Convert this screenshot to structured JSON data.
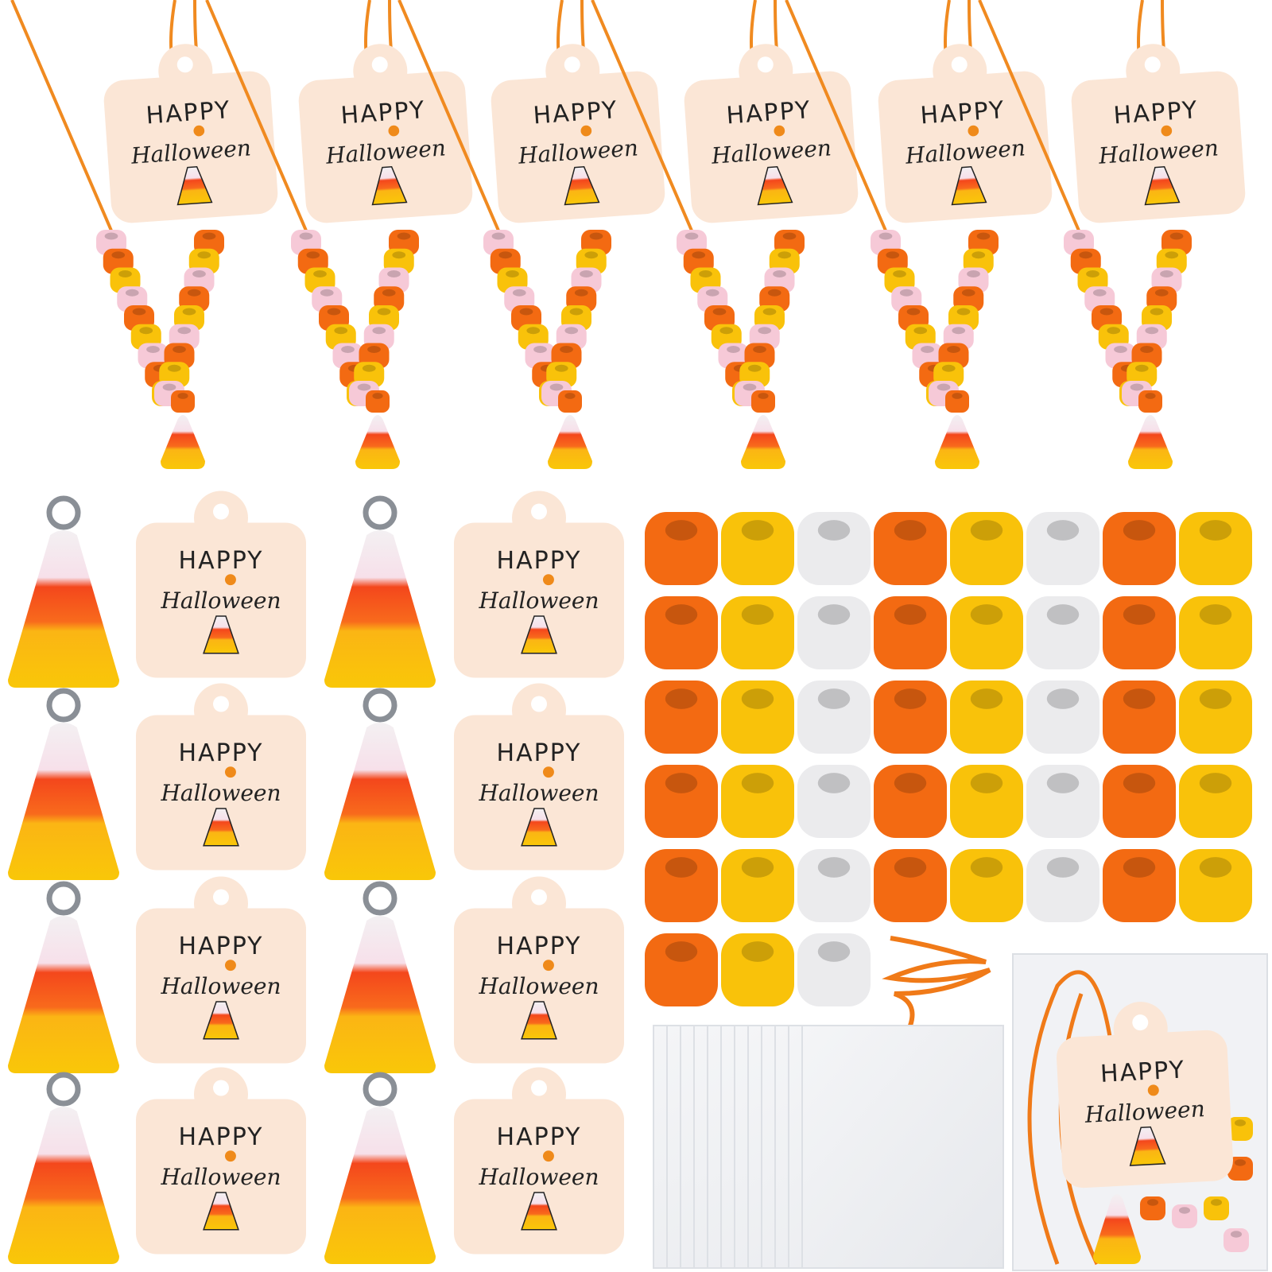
{
  "tags": [
    {
      "line1": "HAPPY",
      "line2": "Halloween"
    },
    {
      "line1": "HAPPY",
      "line2": "Halloween"
    },
    {
      "line1": "HAPPY",
      "line2": "Halloween"
    },
    {
      "line1": "HAPPY",
      "line2": "Halloween"
    },
    {
      "line1": "HAPPY",
      "line2": "Halloween"
    },
    {
      "line1": "HAPPY",
      "line2": "Halloween"
    },
    {
      "line1": "HAPPY",
      "line2": "Halloween"
    },
    {
      "line1": "HAPPY",
      "line2": "Halloween"
    },
    {
      "line1": "HAPPY",
      "line2": "Halloween"
    },
    {
      "line1": "HAPPY",
      "line2": "Halloween"
    },
    {
      "line1": "HAPPY",
      "line2": "Halloween"
    },
    {
      "line1": "HAPPY",
      "line2": "Halloween"
    },
    {
      "line1": "HAPPY",
      "line2": "Halloween"
    },
    {
      "line1": "HAPPY",
      "line2": "Halloween"
    },
    {
      "line1": "HAPPY",
      "line2": "Halloween"
    }
  ]
}
